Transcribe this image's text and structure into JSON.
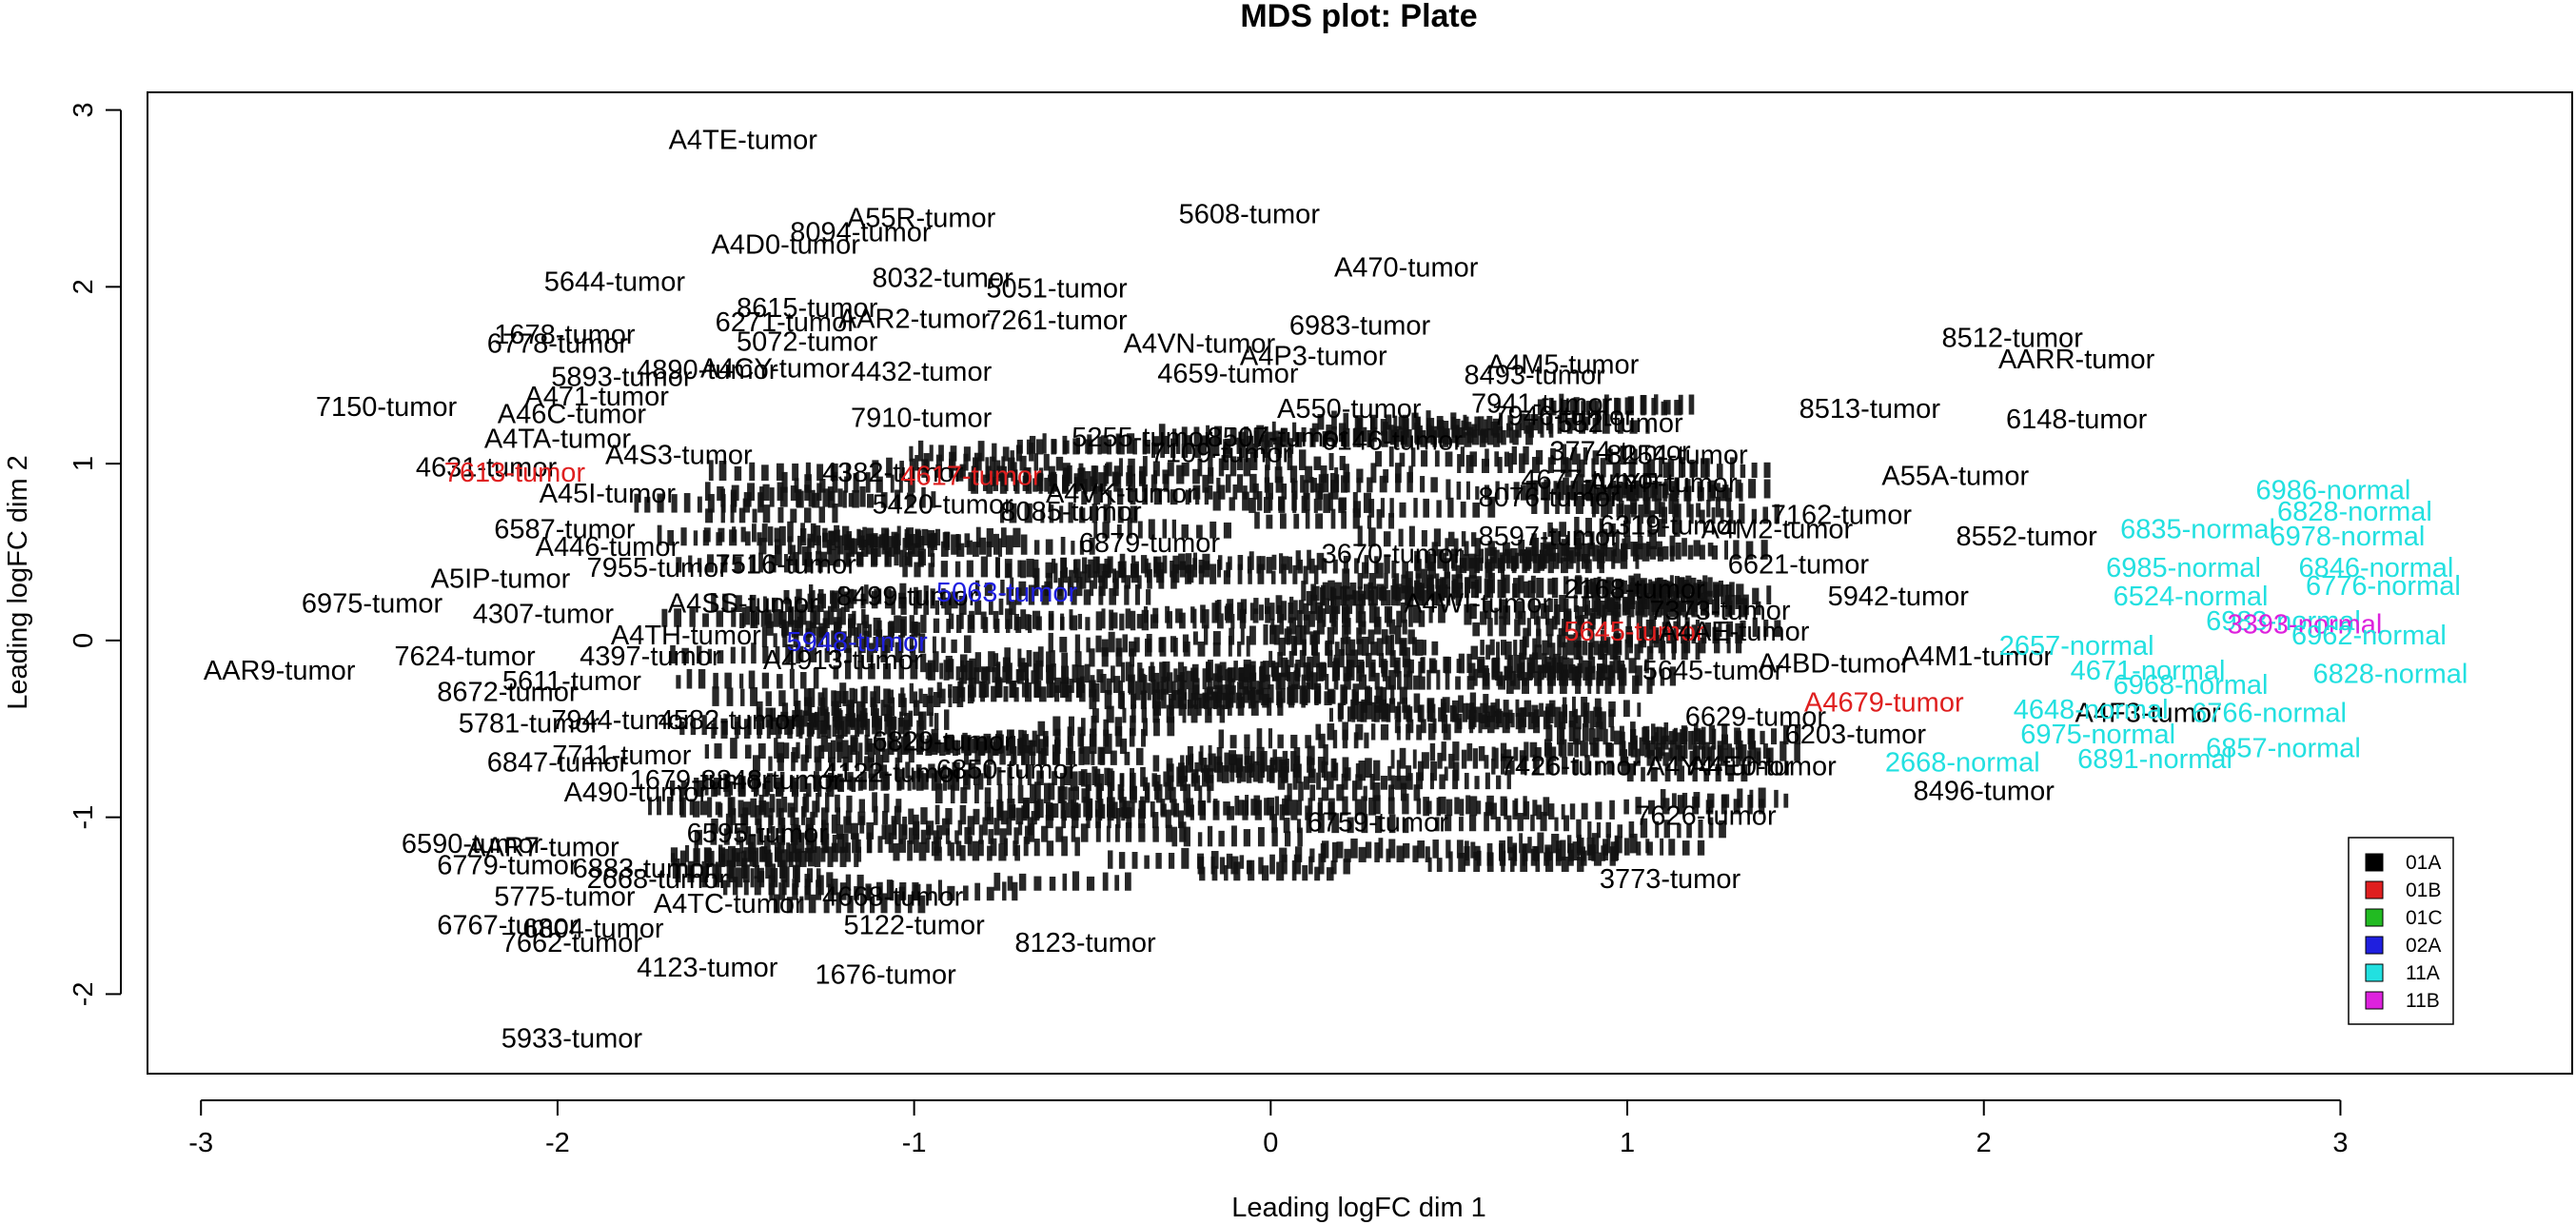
{
  "chart_data": {
    "type": "scatter",
    "title": "MDS plot: Plate",
    "xlabel": "Leading logFC dim 1",
    "ylabel": "Leading logFC dim 2",
    "xlim": [
      -3.15,
      3.65
    ],
    "ylim": [
      -2.45,
      3.1
    ],
    "xticks": [
      -3,
      -2,
      -1,
      0,
      1,
      2,
      3
    ],
    "yticks": [
      -2,
      -1,
      0,
      1,
      2,
      3
    ],
    "grid": false,
    "legend_position": "bottom-right",
    "legend": [
      {
        "name": "01A",
        "color": "#000000"
      },
      {
        "name": "01B",
        "color": "#df1f1f"
      },
      {
        "name": "01C",
        "color": "#22bb22"
      },
      {
        "name": "02A",
        "color": "#1f1fdf"
      },
      {
        "name": "11A",
        "color": "#22e0e0"
      },
      {
        "name": "11B",
        "color": "#dd22dd"
      }
    ],
    "points": [
      {
        "label": "A4TE-tumor",
        "x": -1.48,
        "y": 2.82,
        "group": "01A"
      },
      {
        "label": "A55R-tumor",
        "x": -0.98,
        "y": 2.38,
        "group": "01A"
      },
      {
        "label": "5608-tumor",
        "x": -0.06,
        "y": 2.4,
        "group": "01A"
      },
      {
        "label": "8094-tumor",
        "x": -1.15,
        "y": 2.3,
        "group": "01A"
      },
      {
        "label": "A4D0-tumor",
        "x": -1.36,
        "y": 2.23,
        "group": "01A"
      },
      {
        "label": "A470-tumor",
        "x": 0.38,
        "y": 2.1,
        "group": "01A"
      },
      {
        "label": "8032-tumor",
        "x": -0.92,
        "y": 2.04,
        "group": "01A"
      },
      {
        "label": "5644-tumor",
        "x": -1.84,
        "y": 2.02,
        "group": "01A"
      },
      {
        "label": "5051-tumor",
        "x": -0.6,
        "y": 1.98,
        "group": "01A"
      },
      {
        "label": "8615-tumor",
        "x": -1.3,
        "y": 1.87,
        "group": "01A"
      },
      {
        "label": "6271-tumor",
        "x": -1.36,
        "y": 1.79,
        "group": "01A"
      },
      {
        "label": "AAR2-tumor",
        "x": -1.0,
        "y": 1.81,
        "group": "01A"
      },
      {
        "label": "7261-tumor",
        "x": -0.6,
        "y": 1.8,
        "group": "01A"
      },
      {
        "label": "6983-tumor",
        "x": 0.25,
        "y": 1.77,
        "group": "01A"
      },
      {
        "label": "1678-tumor",
        "x": -1.98,
        "y": 1.72,
        "group": "01A"
      },
      {
        "label": "6778-tumor",
        "x": -2.0,
        "y": 1.67,
        "group": "01A"
      },
      {
        "label": "5072-tumor",
        "x": -1.3,
        "y": 1.68,
        "group": "01A"
      },
      {
        "label": "A4VN-tumor",
        "x": -0.2,
        "y": 1.67,
        "group": "01A"
      },
      {
        "label": "A4P3-tumor",
        "x": 0.12,
        "y": 1.6,
        "group": "01A"
      },
      {
        "label": "8512-tumor",
        "x": 2.08,
        "y": 1.7,
        "group": "01A"
      },
      {
        "label": "AARR-tumor",
        "x": 2.26,
        "y": 1.58,
        "group": "01A"
      },
      {
        "label": "4890-tumor",
        "x": -1.58,
        "y": 1.52,
        "group": "01A"
      },
      {
        "label": "A4M5-tumor",
        "x": 0.82,
        "y": 1.55,
        "group": "01A"
      },
      {
        "label": "8493-tumor",
        "x": 0.74,
        "y": 1.49,
        "group": "01A"
      },
      {
        "label": "5893-tumor",
        "x": -1.82,
        "y": 1.48,
        "group": "01A"
      },
      {
        "label": "A4CY-tumor",
        "x": -1.39,
        "y": 1.53,
        "group": "01A"
      },
      {
        "label": "4432-tumor",
        "x": -0.98,
        "y": 1.51,
        "group": "01A"
      },
      {
        "label": "4659-tumor",
        "x": -0.12,
        "y": 1.5,
        "group": "01A"
      },
      {
        "label": "A471-tumor",
        "x": -1.89,
        "y": 1.37,
        "group": "01A"
      },
      {
        "label": "7150-tumor",
        "x": -2.48,
        "y": 1.31,
        "group": "01A"
      },
      {
        "label": "A46C-tumor",
        "x": -1.96,
        "y": 1.27,
        "group": "01A"
      },
      {
        "label": "A550-tumor",
        "x": 0.22,
        "y": 1.3,
        "group": "01A"
      },
      {
        "label": "7941-tumor",
        "x": 0.76,
        "y": 1.33,
        "group": "01A"
      },
      {
        "label": "7946-tumor",
        "x": 0.82,
        "y": 1.26,
        "group": "01A"
      },
      {
        "label": "8513-tumor",
        "x": 1.68,
        "y": 1.3,
        "group": "01A"
      },
      {
        "label": "6148-tumor",
        "x": 2.26,
        "y": 1.24,
        "group": "01A"
      },
      {
        "label": "7910-tumor",
        "x": -0.98,
        "y": 1.25,
        "group": "01A"
      },
      {
        "label": "552-tumor",
        "x": 0.98,
        "y": 1.22,
        "group": "01A"
      },
      {
        "label": "A4TA-tumor",
        "x": -2.0,
        "y": 1.13,
        "group": "01A"
      },
      {
        "label": "5255-tumor",
        "x": -0.36,
        "y": 1.14,
        "group": "01A"
      },
      {
        "label": "8507-tumor",
        "x": 0.02,
        "y": 1.14,
        "group": "01A"
      },
      {
        "label": "6146-tumor",
        "x": 0.34,
        "y": 1.12,
        "group": "01A"
      },
      {
        "label": "7109-tumor",
        "x": -0.14,
        "y": 1.05,
        "group": "01A"
      },
      {
        "label": "4631-tumor",
        "x": -2.2,
        "y": 0.97,
        "group": "01A"
      },
      {
        "label": "7613-tumor",
        "x": -2.12,
        "y": 0.94,
        "group": "01B"
      },
      {
        "label": "A4S3-tumor",
        "x": -1.66,
        "y": 1.04,
        "group": "01A"
      },
      {
        "label": "3774-tumor",
        "x": 0.98,
        "y": 1.06,
        "group": "01A"
      },
      {
        "label": "8254-tumor",
        "x": 1.14,
        "y": 1.04,
        "group": "01A"
      },
      {
        "label": "4382-tumor",
        "x": -1.06,
        "y": 0.94,
        "group": "01A"
      },
      {
        "label": "4617-tumor",
        "x": -0.84,
        "y": 0.92,
        "group": "01B"
      },
      {
        "label": "A55A-tumor",
        "x": 1.92,
        "y": 0.92,
        "group": "01A"
      },
      {
        "label": "4677-tumor",
        "x": 0.9,
        "y": 0.9,
        "group": "01A"
      },
      {
        "label": "A4YF-tumor",
        "x": 1.1,
        "y": 0.88,
        "group": "01A"
      },
      {
        "label": "8076-tumor",
        "x": 0.78,
        "y": 0.8,
        "group": "01A"
      },
      {
        "label": "A45I-tumor",
        "x": -1.86,
        "y": 0.82,
        "group": "01A"
      },
      {
        "label": "A4VK-tumor",
        "x": -0.42,
        "y": 0.82,
        "group": "01A"
      },
      {
        "label": "5420-tumor",
        "x": -0.92,
        "y": 0.76,
        "group": "01A"
      },
      {
        "label": "8085-tumor",
        "x": -0.56,
        "y": 0.72,
        "group": "01A"
      },
      {
        "label": "7162-tumor",
        "x": 1.6,
        "y": 0.7,
        "group": "01A"
      },
      {
        "label": "A4M2-tumor",
        "x": 1.42,
        "y": 0.62,
        "group": "01A"
      },
      {
        "label": "8552-tumor",
        "x": 2.12,
        "y": 0.58,
        "group": "01A"
      },
      {
        "label": "6319-tumor",
        "x": 1.12,
        "y": 0.64,
        "group": "01A"
      },
      {
        "label": "8597-tumor",
        "x": 0.78,
        "y": 0.58,
        "group": "01A"
      },
      {
        "label": "6587-tumor",
        "x": -1.98,
        "y": 0.62,
        "group": "01A"
      },
      {
        "label": "6879-tumor",
        "x": -0.34,
        "y": 0.54,
        "group": "01A"
      },
      {
        "label": "A446-tumor",
        "x": -1.86,
        "y": 0.52,
        "group": "01A"
      },
      {
        "label": "3670-tumor",
        "x": 0.34,
        "y": 0.48,
        "group": "01A"
      },
      {
        "label": "7955-tumor",
        "x": -1.72,
        "y": 0.4,
        "group": "01A"
      },
      {
        "label": "7516-tumor",
        "x": -1.36,
        "y": 0.42,
        "group": "01A"
      },
      {
        "label": "6621-tumor",
        "x": 1.48,
        "y": 0.42,
        "group": "01A"
      },
      {
        "label": "A5IP-tumor",
        "x": -2.16,
        "y": 0.34,
        "group": "01A"
      },
      {
        "label": "6975-tumor",
        "x": -2.52,
        "y": 0.2,
        "group": "01A"
      },
      {
        "label": "4307-tumor",
        "x": -2.04,
        "y": 0.14,
        "group": "01A"
      },
      {
        "label": "A4SS-tumor",
        "x": -1.48,
        "y": 0.2,
        "group": "01A"
      },
      {
        "label": "8499-tumor",
        "x": -1.02,
        "y": 0.24,
        "group": "01A"
      },
      {
        "label": "5063-tumor",
        "x": -0.74,
        "y": 0.26,
        "group": "02A"
      },
      {
        "label": "5942-tumor",
        "x": 1.76,
        "y": 0.24,
        "group": "01A"
      },
      {
        "label": "2168-tumor",
        "x": 1.02,
        "y": 0.28,
        "group": "01A"
      },
      {
        "label": "7373-tumor",
        "x": 1.26,
        "y": 0.16,
        "group": "01A"
      },
      {
        "label": "A4TH-tumor",
        "x": -1.64,
        "y": 0.02,
        "group": "01A"
      },
      {
        "label": "A4WI-tumor",
        "x": 0.58,
        "y": 0.2,
        "group": "01A"
      },
      {
        "label": "5645-tumor",
        "x": 1.02,
        "y": 0.04,
        "group": "01B"
      },
      {
        "label": "A4AE-tumor",
        "x": 1.3,
        "y": 0.04,
        "group": "01A"
      },
      {
        "label": "5948-tumor",
        "x": -1.16,
        "y": -0.02,
        "group": "02A"
      },
      {
        "label": "A4M1-tumor",
        "x": 1.98,
        "y": -0.1,
        "group": "01A"
      },
      {
        "label": "A4BD-tumor",
        "x": 1.58,
        "y": -0.14,
        "group": "01A"
      },
      {
        "label": "AAR9-tumor",
        "x": -2.78,
        "y": -0.18,
        "group": "01A"
      },
      {
        "label": "7624-tumor",
        "x": -2.26,
        "y": -0.1,
        "group": "01A"
      },
      {
        "label": "4397-tumor",
        "x": -1.74,
        "y": -0.1,
        "group": "01A"
      },
      {
        "label": "A4913-tumor",
        "x": -1.2,
        "y": -0.12,
        "group": "01A"
      },
      {
        "label": "5645-tumor",
        "x": 1.24,
        "y": -0.18,
        "group": "01A"
      },
      {
        "label": "5611-tumor",
        "x": -1.96,
        "y": -0.24,
        "group": "01A"
      },
      {
        "label": "8672-tumor",
        "x": -2.14,
        "y": -0.3,
        "group": "01A"
      },
      {
        "label": "A4679-tumor",
        "x": 1.72,
        "y": -0.36,
        "group": "01B"
      },
      {
        "label": "A4F3-tumor",
        "x": 2.46,
        "y": -0.42,
        "group": "01A"
      },
      {
        "label": "6629-tumor",
        "x": 1.36,
        "y": -0.44,
        "group": "01A"
      },
      {
        "label": "5781-tumor",
        "x": -2.08,
        "y": -0.48,
        "group": "01A"
      },
      {
        "label": "7944-tumor",
        "x": -1.82,
        "y": -0.46,
        "group": "01A"
      },
      {
        "label": "4582-tumor",
        "x": -1.52,
        "y": -0.46,
        "group": "01A"
      },
      {
        "label": "6829-tumor",
        "x": -0.92,
        "y": -0.58,
        "group": "01A"
      },
      {
        "label": "6203-tumor",
        "x": 1.64,
        "y": -0.54,
        "group": "01A"
      },
      {
        "label": "6847-tumor",
        "x": -2.0,
        "y": -0.7,
        "group": "01A"
      },
      {
        "label": "7711-tumor",
        "x": -1.82,
        "y": -0.66,
        "group": "01A"
      },
      {
        "label": "A4Y4-tumor",
        "x": 1.26,
        "y": -0.72,
        "group": "01A"
      },
      {
        "label": "A4E0-tumor",
        "x": 1.38,
        "y": -0.72,
        "group": "01A"
      },
      {
        "label": "7426-tumor",
        "x": 0.84,
        "y": -0.72,
        "group": "01A"
      },
      {
        "label": "1679-tumor",
        "x": -1.6,
        "y": -0.8,
        "group": "01A"
      },
      {
        "label": "8848-tumor",
        "x": -1.4,
        "y": -0.8,
        "group": "01A"
      },
      {
        "label": "4122-tumor",
        "x": -1.06,
        "y": -0.76,
        "group": "01A"
      },
      {
        "label": "6850-tumor",
        "x": -0.74,
        "y": -0.74,
        "group": "01A"
      },
      {
        "label": "8496-tumor",
        "x": 2.0,
        "y": -0.86,
        "group": "01A"
      },
      {
        "label": "A490-tumor",
        "x": -1.78,
        "y": -0.87,
        "group": "01A"
      },
      {
        "label": "7626-tumor",
        "x": 1.22,
        "y": -1.0,
        "group": "01A"
      },
      {
        "label": "6595-tumor",
        "x": -1.44,
        "y": -1.1,
        "group": "01A"
      },
      {
        "label": "6759-tumor",
        "x": 0.3,
        "y": -1.04,
        "group": "01A"
      },
      {
        "label": "6590-tumor",
        "x": -2.24,
        "y": -1.16,
        "group": "01A"
      },
      {
        "label": "AAR7-tumor",
        "x": -2.04,
        "y": -1.18,
        "group": "01A"
      },
      {
        "label": "6779-tumor",
        "x": -2.14,
        "y": -1.28,
        "group": "01A"
      },
      {
        "label": "6883-tumor",
        "x": -1.76,
        "y": -1.3,
        "group": "01A"
      },
      {
        "label": "2668-tumor",
        "x": -1.72,
        "y": -1.36,
        "group": "01A"
      },
      {
        "label": "3773-tumor",
        "x": 1.12,
        "y": -1.36,
        "group": "01A"
      },
      {
        "label": "5775-tumor",
        "x": -1.98,
        "y": -1.46,
        "group": "01A"
      },
      {
        "label": "A4TC-tumor",
        "x": -1.52,
        "y": -1.5,
        "group": "01A"
      },
      {
        "label": "4668-tumor",
        "x": -1.06,
        "y": -1.46,
        "group": "01A"
      },
      {
        "label": "6767-tumor",
        "x": -2.14,
        "y": -1.62,
        "group": "01A"
      },
      {
        "label": "6804-tumor",
        "x": -1.9,
        "y": -1.64,
        "group": "01A"
      },
      {
        "label": "7662-tumor",
        "x": -1.96,
        "y": -1.72,
        "group": "01A"
      },
      {
        "label": "5122-tumor",
        "x": -1.0,
        "y": -1.62,
        "group": "01A"
      },
      {
        "label": "8123-tumor",
        "x": -0.52,
        "y": -1.72,
        "group": "01A"
      },
      {
        "label": "4123-tumor",
        "x": -1.58,
        "y": -1.86,
        "group": "01A"
      },
      {
        "label": "1676-tumor",
        "x": -1.08,
        "y": -1.9,
        "group": "01A"
      },
      {
        "label": "5933-tumor",
        "x": -1.96,
        "y": -2.26,
        "group": "01A"
      },
      {
        "label": "6986-normal",
        "x": 2.98,
        "y": 0.84,
        "group": "11A"
      },
      {
        "label": "6828-normal",
        "x": 3.04,
        "y": 0.72,
        "group": "11A"
      },
      {
        "label": "6835-normal",
        "x": 2.6,
        "y": 0.62,
        "group": "11A"
      },
      {
        "label": "6978-normal",
        "x": 3.02,
        "y": 0.58,
        "group": "11A"
      },
      {
        "label": "6985-normal",
        "x": 2.56,
        "y": 0.4,
        "group": "11A"
      },
      {
        "label": "6846-normal",
        "x": 3.1,
        "y": 0.4,
        "group": "11A"
      },
      {
        "label": "6776-normal",
        "x": 3.12,
        "y": 0.3,
        "group": "11A"
      },
      {
        "label": "6524-normal",
        "x": 2.58,
        "y": 0.24,
        "group": "11A"
      },
      {
        "label": "6983-normal",
        "x": 2.84,
        "y": 0.1,
        "group": "11A"
      },
      {
        "label": "3393-normal",
        "x": 2.9,
        "y": 0.08,
        "group": "11B"
      },
      {
        "label": "2657-normal",
        "x": 2.26,
        "y": -0.04,
        "group": "11A"
      },
      {
        "label": "6962-normal",
        "x": 3.08,
        "y": 0.02,
        "group": "11A"
      },
      {
        "label": "4671-normal",
        "x": 2.46,
        "y": -0.18,
        "group": "11A"
      },
      {
        "label": "6828-normal",
        "x": 3.14,
        "y": -0.2,
        "group": "11A"
      },
      {
        "label": "6968-normal",
        "x": 2.58,
        "y": -0.26,
        "group": "11A"
      },
      {
        "label": "4648-normal",
        "x": 2.3,
        "y": -0.4,
        "group": "11A"
      },
      {
        "label": "6766-normal",
        "x": 2.8,
        "y": -0.42,
        "group": "11A"
      },
      {
        "label": "6975-normal",
        "x": 2.32,
        "y": -0.54,
        "group": "11A"
      },
      {
        "label": "2668-normal",
        "x": 1.94,
        "y": -0.7,
        "group": "11A"
      },
      {
        "label": "6891-normal",
        "x": 2.48,
        "y": -0.68,
        "group": "11A"
      },
      {
        "label": "6857-normal",
        "x": 2.84,
        "y": -0.62,
        "group": "11A"
      }
    ],
    "background_cluster": {
      "group": "01A",
      "x_range": [
        -1.6,
        1.3
      ],
      "y_range": [
        -1.7,
        1.7
      ],
      "count": 320
    }
  }
}
